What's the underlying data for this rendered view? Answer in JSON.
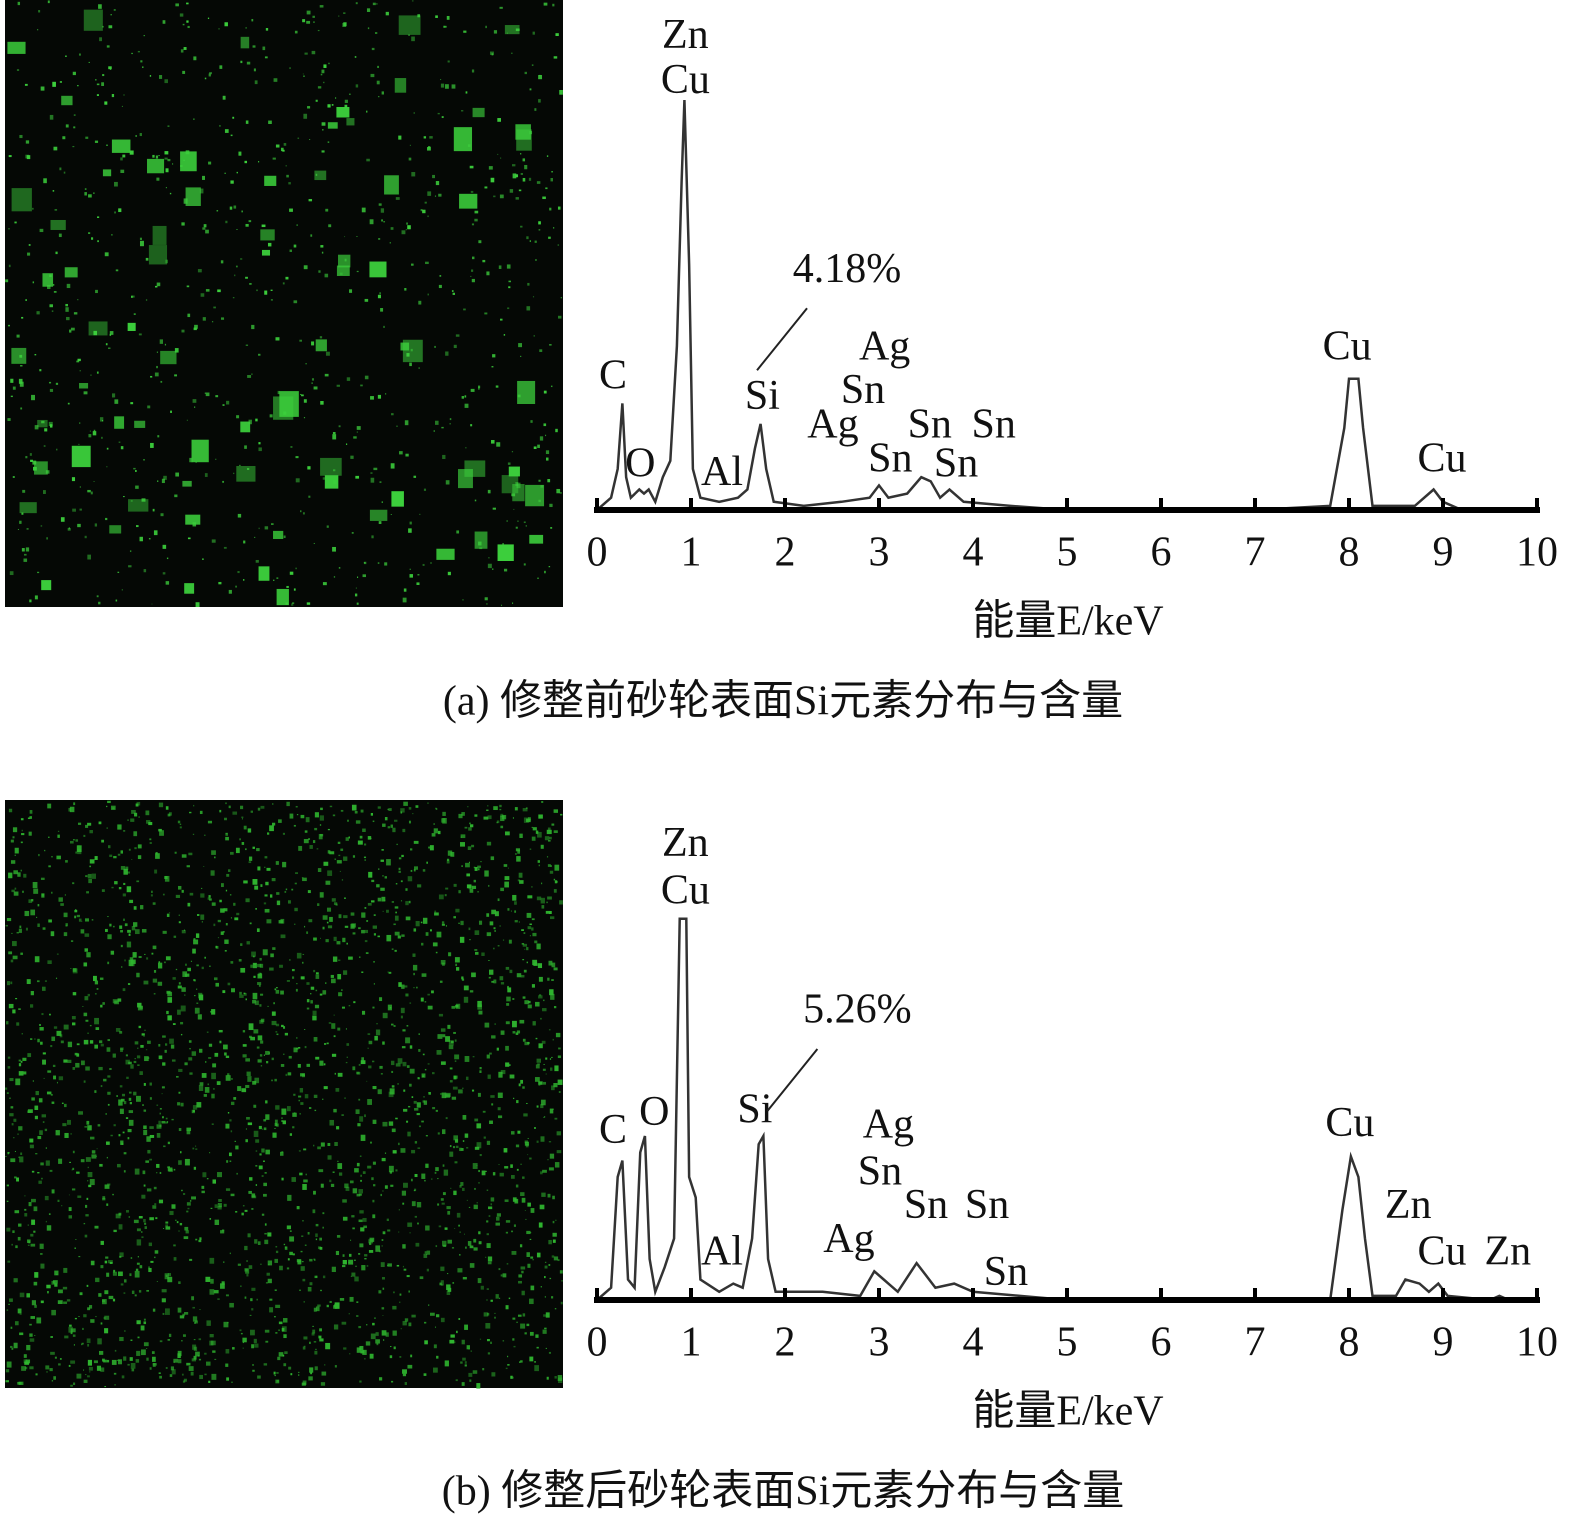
{
  "chart_data": [
    {
      "type": "line",
      "color": "#333333",
      "x": [
        0,
        0.15,
        0.22,
        0.27,
        0.31,
        0.36,
        0.45,
        0.5,
        0.55,
        0.62,
        0.7,
        0.78,
        0.85,
        0.9,
        0.93,
        0.98,
        1.02,
        1.1,
        1.3,
        1.5,
        1.6,
        1.68,
        1.74,
        1.8,
        1.88,
        2.2,
        2.6,
        2.9,
        3,
        3.1,
        3.3,
        3.45,
        3.55,
        3.65,
        3.75,
        3.9,
        4.4,
        5,
        7,
        7.8,
        7.95,
        8,
        8.1,
        8.15,
        8.25,
        8.7,
        8.9,
        9,
        9.2,
        10
      ],
      "values": [
        0,
        3,
        10,
        26,
        8,
        3,
        5,
        4,
        5,
        2,
        8,
        12,
        40,
        80,
        100,
        60,
        10,
        3,
        2,
        3,
        5,
        15,
        21,
        10,
        2,
        1,
        2,
        3,
        6,
        3,
        4,
        8,
        7,
        3,
        5,
        2,
        1,
        0,
        0,
        1,
        20,
        32,
        32,
        20,
        1,
        1,
        5,
        2,
        0,
        0
      ],
      "xlim": [
        0,
        10
      ],
      "xticks": [
        0,
        1,
        2,
        3,
        4,
        5,
        6,
        7,
        8,
        9,
        10
      ],
      "ylim": [
        0,
        120
      ],
      "xlabel": "能量E/keV",
      "caption": "(a) 修整前砂轮表面Si元素分布与含量",
      "annotations": [
        {
          "text": "Zn",
          "x": 0.94,
          "y": 115
        },
        {
          "text": "Cu",
          "x": 0.94,
          "y": 104
        },
        {
          "text": "C",
          "x": 0.17,
          "y": 32
        },
        {
          "text": "O",
          "x": 0.46,
          "y": 10.5
        },
        {
          "text": "Al",
          "x": 1.33,
          "y": 8.5
        },
        {
          "text": "Si",
          "x": 1.76,
          "y": 27
        },
        {
          "text": "4.18%",
          "x": 2.66,
          "y": 58
        },
        {
          "text": "Ag",
          "x": 3.06,
          "y": 39
        },
        {
          "text": "Sn",
          "x": 2.83,
          "y": 28.5
        },
        {
          "text": "Ag",
          "x": 2.51,
          "y": 20
        },
        {
          "text": "Sn",
          "x": 3.54,
          "y": 20
        },
        {
          "text": "Sn",
          "x": 4.22,
          "y": 20
        },
        {
          "text": "Sn",
          "x": 3.12,
          "y": 11.7
        },
        {
          "text": "Sn",
          "x": 3.82,
          "y": 10.5
        },
        {
          "text": "Cu",
          "x": 7.98,
          "y": 39
        },
        {
          "text": "Cu",
          "x": 8.99,
          "y": 11.7
        }
      ]
    },
    {
      "type": "line",
      "color": "#333333",
      "x": [
        0,
        0.15,
        0.22,
        0.27,
        0.33,
        0.4,
        0.46,
        0.51,
        0.56,
        0.62,
        0.72,
        0.82,
        0.88,
        0.95,
        0.98,
        1.05,
        1.1,
        1.3,
        1.45,
        1.55,
        1.65,
        1.72,
        1.77,
        1.82,
        1.9,
        2.4,
        2.8,
        2.95,
        3.05,
        3.2,
        3.4,
        3.5,
        3.6,
        3.8,
        4,
        4.5,
        5,
        7.8,
        7.93,
        8.02,
        8.1,
        8.17,
        8.25,
        8.5,
        8.6,
        8.75,
        8.85,
        8.95,
        9.05,
        9.5,
        9.6,
        9.7,
        10
      ],
      "values": [
        0,
        3,
        30,
        34,
        5,
        3,
        36,
        40,
        10,
        2,
        8,
        15,
        93,
        93,
        30,
        25,
        5,
        2,
        4,
        3,
        15,
        38,
        40,
        10,
        2,
        2,
        1,
        7,
        5,
        2,
        9,
        6,
        3,
        4,
        2,
        1,
        0,
        0,
        22,
        35,
        30,
        15,
        1,
        1,
        5,
        4,
        2,
        4,
        1,
        0,
        1,
        0,
        0
      ],
      "xlim": [
        0,
        10
      ],
      "xticks": [
        0,
        1,
        2,
        3,
        4,
        5,
        6,
        7,
        8,
        9,
        10
      ],
      "ylim": [
        0,
        120
      ],
      "xlabel": "能量E/keV",
      "caption": "(b) 修整后砂轮表面Si元素分布与含量",
      "annotations": [
        {
          "text": "Zn",
          "x": 0.94,
          "y": 110.7
        },
        {
          "text": "Cu",
          "x": 0.94,
          "y": 99
        },
        {
          "text": "C",
          "x": 0.17,
          "y": 40.7
        },
        {
          "text": "O",
          "x": 0.61,
          "y": 45
        },
        {
          "text": "Si",
          "x": 1.68,
          "y": 45.6
        },
        {
          "text": "5.26%",
          "x": 2.77,
          "y": 70
        },
        {
          "text": "Al",
          "x": 1.33,
          "y": 11
        },
        {
          "text": "Ag",
          "x": 2.68,
          "y": 14
        },
        {
          "text": "Ag",
          "x": 3.1,
          "y": 42
        },
        {
          "text": "Sn",
          "x": 3.01,
          "y": 30.5
        },
        {
          "text": "Sn",
          "x": 3.5,
          "y": 22.4
        },
        {
          "text": "Sn",
          "x": 4.15,
          "y": 22.4
        },
        {
          "text": "Sn",
          "x": 4.35,
          "y": 6
        },
        {
          "text": "Cu",
          "x": 8.01,
          "y": 42.4
        },
        {
          "text": "Zn",
          "x": 8.63,
          "y": 22.4
        },
        {
          "text": "Cu",
          "x": 8.99,
          "y": 11
        },
        {
          "text": "Zn",
          "x": 9.69,
          "y": 11
        }
      ]
    }
  ]
}
